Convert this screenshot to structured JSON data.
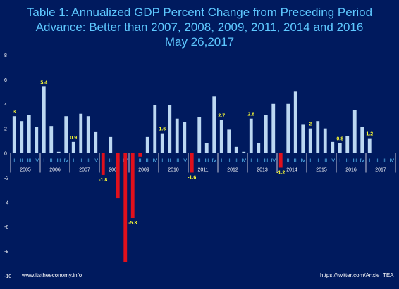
{
  "header": {
    "title_line1": "Table 1: Annualized GDP Percent Change from Preceding Period",
    "title_line2": "Advance: Better than 2007, 2008, 2009, 2011, 2014 and 2016",
    "title_line3": "May 26,2017"
  },
  "footer": {
    "left_source": "www.itstheeconomy.info",
    "right_source": "https://twitter.com/Anxie_TEA"
  },
  "colors": {
    "background": "#001a5e",
    "positive_bar": "#bcd8f2",
    "negative_bar": "#e0101c",
    "title": "#5ec8ff",
    "data_label": "#ffff33",
    "axis_text": "#ffffff",
    "quarter_text": "#5ec8ff"
  },
  "chart_data": {
    "type": "bar",
    "ylim": [
      -10,
      8
    ],
    "yticks": [
      8,
      6,
      4,
      2,
      0,
      -2,
      -4,
      -6,
      -8,
      -10
    ],
    "grid": false,
    "quarter_labels": [
      "I",
      "II",
      "III",
      "IV"
    ],
    "years": [
      "2005",
      "2006",
      "2007",
      "2008",
      "2009",
      "2010",
      "2011",
      "2012",
      "2013",
      "2014",
      "2015",
      "2016",
      "2017"
    ],
    "values": [
      3.0,
      2.6,
      3.1,
      2.1,
      5.4,
      2.2,
      0.1,
      3.0,
      0.9,
      3.2,
      3.0,
      1.7,
      -1.8,
      1.3,
      -3.7,
      -8.9,
      -5.3,
      -0.3,
      1.3,
      3.9,
      1.6,
      3.9,
      2.8,
      2.5,
      -1.6,
      2.9,
      0.8,
      4.6,
      2.7,
      1.9,
      0.5,
      0.1,
      2.8,
      0.8,
      3.1,
      4.0,
      -1.2,
      4.0,
      5.0,
      2.3,
      2.0,
      2.6,
      2.0,
      0.9,
      0.8,
      1.4,
      3.5,
      2.1,
      1.2
    ],
    "data_labels": [
      {
        "index": 0,
        "text": "3"
      },
      {
        "index": 4,
        "text": "5.4"
      },
      {
        "index": 8,
        "text": "0.9"
      },
      {
        "index": 12,
        "text": "-1.8"
      },
      {
        "index": 16,
        "text": "-5.3"
      },
      {
        "index": 20,
        "text": "1.6"
      },
      {
        "index": 24,
        "text": "-1.6"
      },
      {
        "index": 28,
        "text": "2.7"
      },
      {
        "index": 32,
        "text": "2.8"
      },
      {
        "index": 36,
        "text": "-1.2"
      },
      {
        "index": 40,
        "text": "2"
      },
      {
        "index": 44,
        "text": "0.8"
      },
      {
        "index": 48,
        "text": "1.2"
      }
    ]
  }
}
